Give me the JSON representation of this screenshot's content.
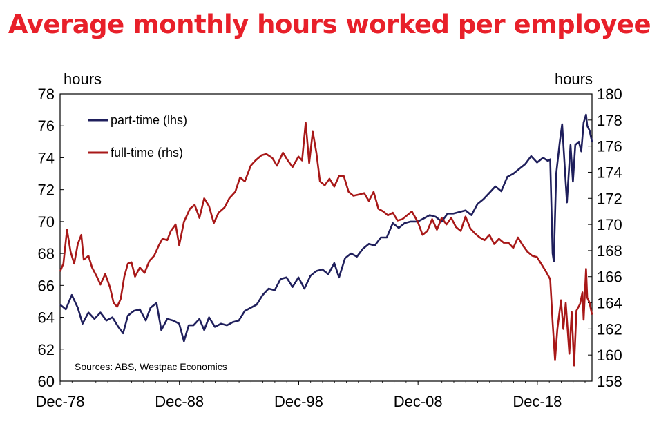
{
  "chart_data": {
    "type": "line",
    "title": "Average monthly hours worked per employee",
    "left_axis": {
      "unit_label": "hours",
      "min": 60,
      "max": 78,
      "step": 2,
      "tick_labels": [
        "60",
        "62",
        "64",
        "66",
        "68",
        "70",
        "72",
        "74",
        "76",
        "78"
      ]
    },
    "right_axis": {
      "unit_label": "hours",
      "min": 158,
      "max": 180,
      "step": 2,
      "tick_labels": [
        "158",
        "160",
        "162",
        "164",
        "166",
        "168",
        "170",
        "172",
        "174",
        "176",
        "178",
        "180"
      ]
    },
    "x_axis": {
      "min": 1978.92,
      "max": 2023.5,
      "tick_labels": [
        "Dec-78",
        "Dec-88",
        "Dec-98",
        "Dec-08",
        "Dec-18"
      ],
      "tick_years": [
        1978.92,
        1988.92,
        1998.92,
        2008.92,
        2018.92
      ]
    },
    "legend": {
      "placement": "top-left"
    },
    "grid": false,
    "series": [
      {
        "name": "part-time (lhs)",
        "axis": "left",
        "color": "#1f1f5c",
        "points": [
          [
            1978.92,
            64.8
          ],
          [
            1979.4,
            64.5
          ],
          [
            1979.9,
            65.4
          ],
          [
            1980.4,
            64.6
          ],
          [
            1980.8,
            63.6
          ],
          [
            1981.3,
            64.3
          ],
          [
            1981.8,
            63.9
          ],
          [
            1982.3,
            64.3
          ],
          [
            1982.8,
            63.8
          ],
          [
            1983.3,
            64.0
          ],
          [
            1983.8,
            63.4
          ],
          [
            1984.2,
            63.0
          ],
          [
            1984.6,
            64.1
          ],
          [
            1985.1,
            64.4
          ],
          [
            1985.6,
            64.5
          ],
          [
            1986.1,
            63.8
          ],
          [
            1986.5,
            64.6
          ],
          [
            1987.0,
            64.9
          ],
          [
            1987.4,
            63.2
          ],
          [
            1987.9,
            63.9
          ],
          [
            1988.4,
            63.8
          ],
          [
            1988.9,
            63.6
          ],
          [
            1989.3,
            62.5
          ],
          [
            1989.7,
            63.5
          ],
          [
            1990.1,
            63.5
          ],
          [
            1990.6,
            63.9
          ],
          [
            1991.0,
            63.2
          ],
          [
            1991.4,
            64.0
          ],
          [
            1991.9,
            63.4
          ],
          [
            1992.4,
            63.6
          ],
          [
            1992.9,
            63.5
          ],
          [
            1993.4,
            63.7
          ],
          [
            1993.9,
            63.8
          ],
          [
            1994.4,
            64.4
          ],
          [
            1994.9,
            64.6
          ],
          [
            1995.4,
            64.8
          ],
          [
            1995.9,
            65.4
          ],
          [
            1996.4,
            65.8
          ],
          [
            1996.9,
            65.7
          ],
          [
            1997.4,
            66.4
          ],
          [
            1997.9,
            66.5
          ],
          [
            1998.4,
            65.9
          ],
          [
            1998.9,
            66.5
          ],
          [
            1999.4,
            65.8
          ],
          [
            1999.9,
            66.6
          ],
          [
            2000.4,
            66.9
          ],
          [
            2000.9,
            67.0
          ],
          [
            2001.4,
            66.7
          ],
          [
            2001.9,
            67.4
          ],
          [
            2002.3,
            66.5
          ],
          [
            2002.8,
            67.7
          ],
          [
            2003.3,
            68.0
          ],
          [
            2003.8,
            67.8
          ],
          [
            2004.3,
            68.3
          ],
          [
            2004.8,
            68.6
          ],
          [
            2005.3,
            68.5
          ],
          [
            2005.8,
            69.0
          ],
          [
            2006.3,
            69.0
          ],
          [
            2006.8,
            69.9
          ],
          [
            2007.3,
            69.6
          ],
          [
            2007.8,
            69.9
          ],
          [
            2008.3,
            70.0
          ],
          [
            2008.9,
            70.0
          ],
          [
            2009.4,
            70.2
          ],
          [
            2009.9,
            70.4
          ],
          [
            2010.4,
            70.3
          ],
          [
            2010.9,
            70.0
          ],
          [
            2011.4,
            70.5
          ],
          [
            2011.9,
            70.5
          ],
          [
            2012.4,
            70.6
          ],
          [
            2012.9,
            70.7
          ],
          [
            2013.4,
            70.4
          ],
          [
            2013.9,
            71.1
          ],
          [
            2014.4,
            71.4
          ],
          [
            2014.9,
            71.8
          ],
          [
            2015.4,
            72.2
          ],
          [
            2015.9,
            71.9
          ],
          [
            2016.4,
            72.8
          ],
          [
            2016.9,
            73.0
          ],
          [
            2017.4,
            73.3
          ],
          [
            2017.9,
            73.6
          ],
          [
            2018.4,
            74.1
          ],
          [
            2018.9,
            73.7
          ],
          [
            2019.4,
            74.0
          ],
          [
            2019.8,
            73.8
          ],
          [
            2020.0,
            73.9
          ],
          [
            2020.2,
            68.0
          ],
          [
            2020.3,
            67.5
          ],
          [
            2020.5,
            73.0
          ],
          [
            2020.8,
            75.0
          ],
          [
            2021.0,
            76.1
          ],
          [
            2021.2,
            73.6
          ],
          [
            2021.4,
            71.2
          ],
          [
            2021.7,
            74.8
          ],
          [
            2021.9,
            72.5
          ],
          [
            2022.1,
            74.8
          ],
          [
            2022.4,
            75.0
          ],
          [
            2022.6,
            74.4
          ],
          [
            2022.8,
            76.2
          ],
          [
            2023.0,
            76.7
          ],
          [
            2023.1,
            76.0
          ],
          [
            2023.3,
            75.7
          ],
          [
            2023.5,
            75.0
          ]
        ]
      },
      {
        "name": "full-time (rhs)",
        "axis": "right",
        "color": "#a81818",
        "points": [
          [
            1978.92,
            166.4
          ],
          [
            1979.2,
            167.0
          ],
          [
            1979.5,
            169.6
          ],
          [
            1979.8,
            167.9
          ],
          [
            1980.1,
            167.0
          ],
          [
            1980.4,
            168.5
          ],
          [
            1980.7,
            169.2
          ],
          [
            1980.9,
            167.3
          ],
          [
            1981.3,
            167.6
          ],
          [
            1981.6,
            166.7
          ],
          [
            1982.0,
            166.0
          ],
          [
            1982.3,
            165.4
          ],
          [
            1982.7,
            166.2
          ],
          [
            1983.1,
            165.2
          ],
          [
            1983.4,
            164.0
          ],
          [
            1983.7,
            163.7
          ],
          [
            1984.0,
            164.3
          ],
          [
            1984.3,
            166.0
          ],
          [
            1984.6,
            167.0
          ],
          [
            1984.9,
            167.1
          ],
          [
            1985.2,
            166.0
          ],
          [
            1985.6,
            166.7
          ],
          [
            1986.0,
            166.3
          ],
          [
            1986.4,
            167.2
          ],
          [
            1986.8,
            167.6
          ],
          [
            1987.2,
            168.4
          ],
          [
            1987.5,
            168.9
          ],
          [
            1987.9,
            168.8
          ],
          [
            1988.2,
            169.5
          ],
          [
            1988.6,
            170.0
          ],
          [
            1988.9,
            168.4
          ],
          [
            1989.3,
            170.2
          ],
          [
            1989.8,
            171.2
          ],
          [
            1990.2,
            171.5
          ],
          [
            1990.6,
            170.5
          ],
          [
            1991.0,
            172.0
          ],
          [
            1991.4,
            171.4
          ],
          [
            1991.8,
            170.1
          ],
          [
            1992.2,
            170.9
          ],
          [
            1992.7,
            171.3
          ],
          [
            1993.1,
            172.0
          ],
          [
            1993.6,
            172.5
          ],
          [
            1994.0,
            173.6
          ],
          [
            1994.4,
            173.3
          ],
          [
            1994.9,
            174.5
          ],
          [
            1995.3,
            174.9
          ],
          [
            1995.8,
            175.3
          ],
          [
            1996.2,
            175.4
          ],
          [
            1996.7,
            175.1
          ],
          [
            1997.1,
            174.5
          ],
          [
            1997.6,
            175.5
          ],
          [
            1998.0,
            174.9
          ],
          [
            1998.4,
            174.4
          ],
          [
            1998.9,
            175.2
          ],
          [
            1999.2,
            174.9
          ],
          [
            1999.5,
            177.8
          ],
          [
            1999.8,
            174.7
          ],
          [
            2000.1,
            177.1
          ],
          [
            2000.4,
            175.5
          ],
          [
            2000.7,
            173.3
          ],
          [
            2001.1,
            173.0
          ],
          [
            2001.5,
            173.5
          ],
          [
            2001.9,
            172.9
          ],
          [
            2002.3,
            173.7
          ],
          [
            2002.7,
            173.7
          ],
          [
            2003.1,
            172.5
          ],
          [
            2003.5,
            172.2
          ],
          [
            2004.0,
            172.3
          ],
          [
            2004.4,
            172.4
          ],
          [
            2004.8,
            171.8
          ],
          [
            2005.2,
            172.5
          ],
          [
            2005.6,
            171.2
          ],
          [
            2006.0,
            171.0
          ],
          [
            2006.4,
            170.7
          ],
          [
            2006.8,
            170.9
          ],
          [
            2007.2,
            170.3
          ],
          [
            2007.6,
            170.4
          ],
          [
            2008.0,
            170.7
          ],
          [
            2008.4,
            171.0
          ],
          [
            2008.9,
            170.2
          ],
          [
            2009.3,
            169.2
          ],
          [
            2009.7,
            169.5
          ],
          [
            2010.1,
            170.4
          ],
          [
            2010.5,
            169.6
          ],
          [
            2010.9,
            170.5
          ],
          [
            2011.3,
            170.0
          ],
          [
            2011.7,
            170.5
          ],
          [
            2012.1,
            169.8
          ],
          [
            2012.5,
            169.5
          ],
          [
            2012.9,
            170.6
          ],
          [
            2013.3,
            169.7
          ],
          [
            2013.7,
            169.3
          ],
          [
            2014.1,
            169.0
          ],
          [
            2014.5,
            168.8
          ],
          [
            2014.9,
            169.2
          ],
          [
            2015.3,
            168.5
          ],
          [
            2015.7,
            168.9
          ],
          [
            2016.1,
            168.6
          ],
          [
            2016.5,
            168.6
          ],
          [
            2016.9,
            168.2
          ],
          [
            2017.3,
            169.0
          ],
          [
            2017.7,
            168.4
          ],
          [
            2018.1,
            167.9
          ],
          [
            2018.5,
            167.6
          ],
          [
            2018.9,
            167.5
          ],
          [
            2019.3,
            166.9
          ],
          [
            2019.7,
            166.3
          ],
          [
            2020.0,
            165.8
          ],
          [
            2020.2,
            162.5
          ],
          [
            2020.4,
            159.6
          ],
          [
            2020.6,
            162.0
          ],
          [
            2020.9,
            164.2
          ],
          [
            2021.1,
            162.0
          ],
          [
            2021.3,
            164.0
          ],
          [
            2021.6,
            160.1
          ],
          [
            2021.8,
            163.3
          ],
          [
            2022.0,
            159.2
          ],
          [
            2022.2,
            163.4
          ],
          [
            2022.5,
            163.9
          ],
          [
            2022.7,
            164.8
          ],
          [
            2022.8,
            162.7
          ],
          [
            2023.0,
            166.6
          ],
          [
            2023.1,
            164.4
          ],
          [
            2023.3,
            164.0
          ],
          [
            2023.5,
            163.1
          ]
        ]
      }
    ],
    "annotations": [
      "Sources: ABS, Westpac Economics"
    ]
  }
}
